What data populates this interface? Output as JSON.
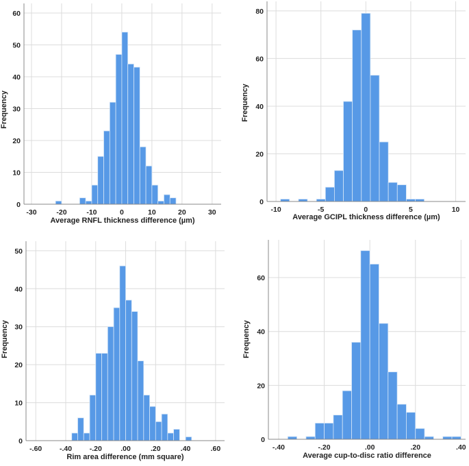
{
  "chart_data": [
    {
      "type": "bar",
      "xlabel": "Average RNFL thickness difference (µm)",
      "ylabel": "Frequency",
      "bin_width": 2,
      "bin_starts": [
        -22,
        -20,
        -18,
        -16,
        -14,
        -12,
        -10,
        -8,
        -6,
        -4,
        -2,
        0,
        2,
        4,
        6,
        8,
        10,
        12,
        14,
        16
      ],
      "values": [
        1,
        0,
        0,
        0,
        2,
        1,
        6,
        15,
        23,
        32,
        47,
        54,
        44,
        43,
        18,
        12,
        6,
        1,
        3,
        2
      ],
      "xlim": [
        -32.5,
        33
      ],
      "ylim": [
        0,
        63
      ],
      "xticks": [
        -30,
        -20,
        -10,
        0,
        10,
        20,
        30
      ],
      "xtick_labels": [
        "-30",
        "-20",
        "-10",
        "0",
        "10",
        "20",
        "30"
      ],
      "yticks": [
        0,
        10,
        20,
        30,
        40,
        50,
        60
      ],
      "ytick_labels": [
        "0",
        "10",
        "20",
        "30",
        "40",
        "50",
        "60"
      ],
      "grid": true,
      "color": "#5799E6"
    },
    {
      "type": "bar",
      "xlabel": "Average GCIPL thickness difference (µm)",
      "ylabel": "Frequency",
      "bin_width": 1,
      "bin_starts": [
        -9.5,
        -8.5,
        -7.5,
        -6.5,
        -5.5,
        -4.5,
        -3.5,
        -2.5,
        -1.5,
        -0.5,
        0.5,
        1.5,
        2.5,
        3.5,
        4.5,
        5.5
      ],
      "values": [
        1,
        0,
        1,
        0,
        1,
        6,
        13,
        42,
        72,
        79,
        53,
        25,
        8,
        7,
        1,
        1
      ],
      "xlim": [
        -11,
        11.1
      ],
      "ylim": [
        0,
        84
      ],
      "xticks": [
        -10,
        -5,
        0,
        5,
        10
      ],
      "xtick_labels": [
        "-10",
        "-5",
        "0",
        "5",
        "10"
      ],
      "yticks": [
        0,
        20,
        40,
        60,
        80
      ],
      "ytick_labels": [
        "0",
        "20",
        "40",
        "60",
        "80"
      ],
      "grid": true,
      "color": "#5799E6"
    },
    {
      "type": "bar",
      "xlabel": "Rim area difference (mm square)",
      "ylabel": "Frequency",
      "bin_width": 0.04,
      "bin_starts": [
        -0.36,
        -0.32,
        -0.28,
        -0.24,
        -0.2,
        -0.16,
        -0.12,
        -0.08,
        -0.04,
        0.0,
        0.04,
        0.08,
        0.12,
        0.16,
        0.2,
        0.24,
        0.28,
        0.32,
        0.36,
        0.4
      ],
      "values": [
        2,
        6,
        2,
        12,
        23,
        23,
        30,
        35,
        46,
        37,
        34,
        21,
        12,
        9,
        5,
        7,
        2,
        3,
        0,
        1
      ],
      "xlim": [
        -0.665,
        0.66
      ],
      "ylim": [
        0,
        52.5
      ],
      "xticks": [
        -0.6,
        -0.4,
        -0.2,
        0,
        0.2,
        0.4,
        0.6
      ],
      "xtick_labels": [
        "-.60",
        "-.40",
        "-.20",
        ".00",
        ".20",
        ".40",
        ".60"
      ],
      "yticks": [
        0,
        10,
        20,
        30,
        40,
        50
      ],
      "ytick_labels": [
        "0",
        "10",
        "20",
        "30",
        "40",
        "50"
      ],
      "grid": true,
      "color": "#5799E6"
    },
    {
      "type": "bar",
      "xlabel": "Average cup-to-disc ratio difference",
      "ylabel": "Frequency",
      "bin_width": 0.04,
      "bin_starts": [
        -0.36,
        -0.32,
        -0.28,
        -0.24,
        -0.2,
        -0.16,
        -0.12,
        -0.08,
        -0.04,
        0.0,
        0.04,
        0.08,
        0.12,
        0.16,
        0.2,
        0.24,
        0.28,
        0.32,
        0.36
      ],
      "values": [
        1,
        0,
        1,
        6,
        6,
        9,
        18,
        36,
        70,
        65,
        43,
        25,
        13,
        10,
        4,
        1,
        0,
        1,
        1
      ],
      "xlim": [
        -0.445,
        0.42
      ],
      "ylim": [
        0,
        74
      ],
      "xticks": [
        -0.4,
        -0.2,
        0,
        0.2,
        0.4
      ],
      "xtick_labels": [
        "-.40",
        "-.20",
        ".00",
        ".20",
        ".40"
      ],
      "yticks": [
        0,
        20,
        40,
        60
      ],
      "ytick_labels": [
        "0",
        "20",
        "40",
        "60"
      ],
      "grid": true,
      "color": "#5799E6"
    }
  ]
}
